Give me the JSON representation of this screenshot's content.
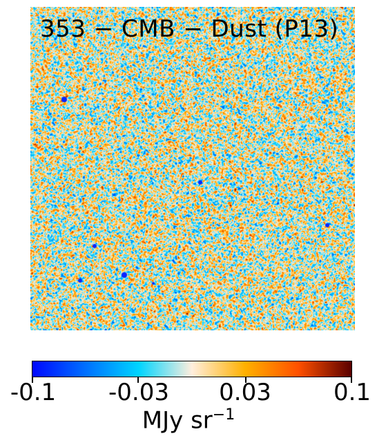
{
  "map": {
    "title": "353 − CMB − Dust (P13)",
    "colormap_colors": [
      "#0008ff",
      "#0070ff",
      "#00d4ff",
      "#ffeedd",
      "#ffb000",
      "#ff5000",
      "#5a0000"
    ]
  },
  "colorbar": {
    "range": [
      -0.1,
      0.1
    ],
    "ticks": [
      {
        "value": -0.1,
        "label": "-0.1"
      },
      {
        "value": -0.03,
        "label": "-0.03"
      },
      {
        "value": 0.03,
        "label": "0.03"
      },
      {
        "value": 0.1,
        "label": "0.1"
      }
    ],
    "unit_label": "MJy sr",
    "unit_exponent": "−1"
  }
}
